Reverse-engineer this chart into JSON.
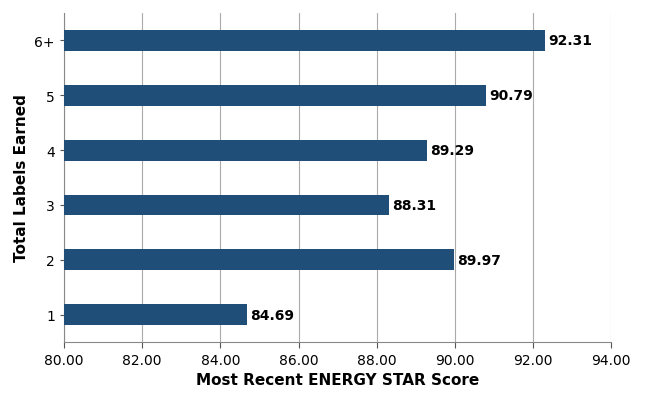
{
  "categories": [
    "1",
    "2",
    "3",
    "4",
    "5",
    "6+"
  ],
  "values": [
    84.69,
    89.97,
    88.31,
    89.29,
    90.79,
    92.31
  ],
  "bar_color": "#1F4E79",
  "xlabel": "Most Recent ENERGY STAR Score",
  "ylabel": "Total Labels Earned",
  "xlim": [
    80.0,
    94.0
  ],
  "xticks": [
    80.0,
    82.0,
    84.0,
    86.0,
    88.0,
    90.0,
    92.0,
    94.0
  ],
  "bar_height": 0.38,
  "label_fontsize": 10,
  "axis_label_fontsize": 11,
  "tick_fontsize": 10,
  "background_color": "#ffffff",
  "grid_color": "#aaaaaa"
}
